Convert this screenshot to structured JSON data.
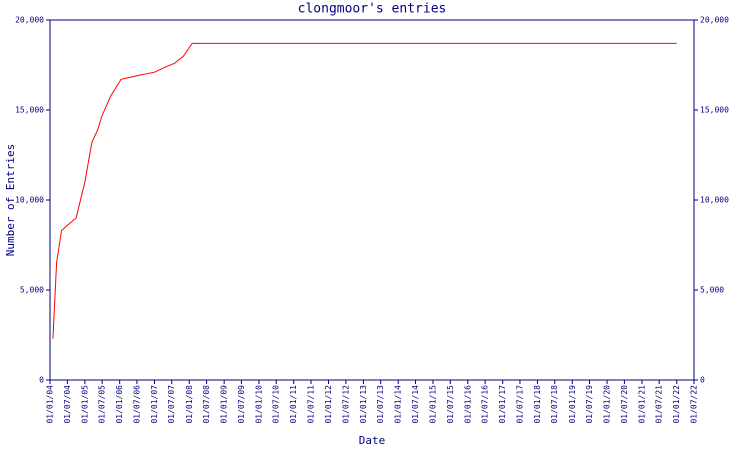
{
  "chart_data": {
    "type": "line",
    "title": "clongmoor's entries",
    "xlabel": "Date",
    "ylabel": "Number of Entries",
    "x": [
      "2004-02-01",
      "2004-03-10",
      "2004-05-01",
      "2004-07-01",
      "2004-10-01",
      "2005-01-01",
      "2005-03-15",
      "2005-05-15",
      "2005-07-01",
      "2005-10-01",
      "2006-01-15",
      "2006-07-01",
      "2007-01-01",
      "2007-05-01",
      "2007-08-01",
      "2007-11-01",
      "2008-02-01",
      "2022-01-01"
    ],
    "series": [
      {
        "color": "#ff0000",
        "values": [
          2300,
          6500,
          8300,
          8600,
          9000,
          11000,
          13200,
          13900,
          14700,
          15800,
          16700,
          16900,
          17100,
          17400,
          17600,
          18000,
          18700,
          18700
        ]
      }
    ],
    "xlim": [
      "2004-01-01",
      "2022-07-01"
    ],
    "xticks": [
      {
        "value": "2004-01-01",
        "label": "01/01/04"
      },
      {
        "value": "2004-07-01",
        "label": "01/07/04"
      },
      {
        "value": "2005-01-01",
        "label": "01/01/05"
      },
      {
        "value": "2005-07-01",
        "label": "01/07/05"
      },
      {
        "value": "2006-01-01",
        "label": "01/01/06"
      },
      {
        "value": "2006-07-01",
        "label": "01/07/06"
      },
      {
        "value": "2007-01-01",
        "label": "01/01/07"
      },
      {
        "value": "2007-07-01",
        "label": "01/07/07"
      },
      {
        "value": "2008-01-01",
        "label": "01/01/08"
      },
      {
        "value": "2008-07-01",
        "label": "01/07/08"
      },
      {
        "value": "2009-01-01",
        "label": "01/01/09"
      },
      {
        "value": "2009-07-01",
        "label": "01/07/09"
      },
      {
        "value": "2010-01-01",
        "label": "01/01/10"
      },
      {
        "value": "2010-07-01",
        "label": "01/07/10"
      },
      {
        "value": "2011-01-01",
        "label": "01/01/11"
      },
      {
        "value": "2011-07-01",
        "label": "01/07/11"
      },
      {
        "value": "2012-01-01",
        "label": "01/01/12"
      },
      {
        "value": "2012-07-01",
        "label": "01/07/12"
      },
      {
        "value": "2013-01-01",
        "label": "01/01/13"
      },
      {
        "value": "2013-07-01",
        "label": "01/07/13"
      },
      {
        "value": "2014-01-01",
        "label": "01/01/14"
      },
      {
        "value": "2014-07-01",
        "label": "01/07/14"
      },
      {
        "value": "2015-01-01",
        "label": "01/01/15"
      },
      {
        "value": "2015-07-01",
        "label": "01/07/15"
      },
      {
        "value": "2016-01-01",
        "label": "01/01/16"
      },
      {
        "value": "2016-07-01",
        "label": "01/07/16"
      },
      {
        "value": "2017-01-01",
        "label": "01/01/17"
      },
      {
        "value": "2017-07-01",
        "label": "01/07/17"
      },
      {
        "value": "2018-01-01",
        "label": "01/01/18"
      },
      {
        "value": "2018-07-01",
        "label": "01/07/18"
      },
      {
        "value": "2019-01-01",
        "label": "01/01/19"
      },
      {
        "value": "2019-07-01",
        "label": "01/07/19"
      },
      {
        "value": "2020-01-01",
        "label": "01/01/20"
      },
      {
        "value": "2020-07-01",
        "label": "01/07/20"
      },
      {
        "value": "2021-01-01",
        "label": "01/01/21"
      },
      {
        "value": "2021-07-01",
        "label": "01/07/21"
      },
      {
        "value": "2022-01-01",
        "label": "01/01/22"
      },
      {
        "value": "2022-07-01",
        "label": "01/07/22"
      }
    ],
    "ylim": [
      0,
      20000
    ],
    "yticks": [
      0,
      {
        "value": 5000,
        "label": "5,000"
      },
      {
        "value": 10000,
        "label": "10,000"
      },
      {
        "value": 15000,
        "label": "15,000"
      },
      {
        "value": 20000,
        "label": "20,000"
      }
    ],
    "axis_color": "#000080"
  }
}
